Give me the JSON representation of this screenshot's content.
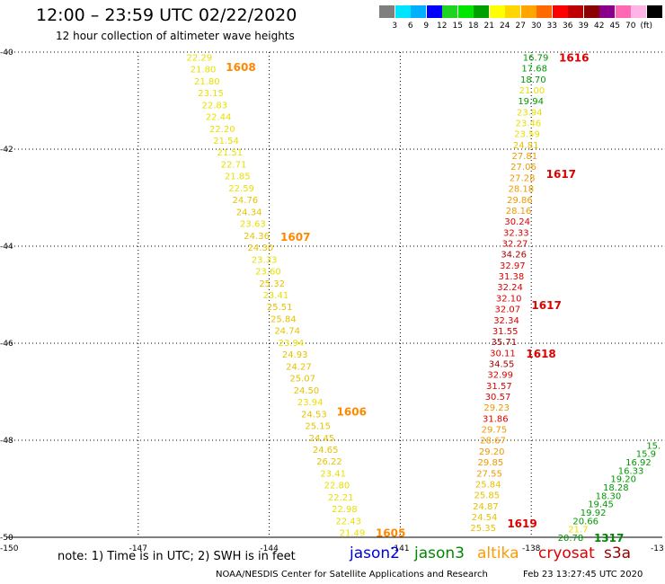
{
  "header": {
    "title": "12:00 – 23:59 UTC 02/22/2020",
    "subtitle": "12 hour collection of altimeter wave heights"
  },
  "colorbar": {
    "colors": [
      "#7f7f7f",
      "#00e5ff",
      "#00b0ff",
      "#0000ff",
      "#1fd41f",
      "#00e600",
      "#00a000",
      "#ffff00",
      "#ffd700",
      "#ffa500",
      "#ff6a00",
      "#ff0000",
      "#c00000",
      "#8b0000",
      "#8b008b",
      "#ff69b4",
      "#ffb3e6",
      "#000000"
    ],
    "labels": [
      "3",
      "6",
      "9",
      "12",
      "15",
      "18",
      "21",
      "24",
      "27",
      "30",
      "33",
      "36",
      "39",
      "42",
      "45",
      "70",
      "(ft)"
    ]
  },
  "footer": {
    "note": "note:  1) Time is in UTC;  2) SWH is in feet",
    "satellites": [
      {
        "name": "jason2",
        "color": "#0000dd"
      },
      {
        "name": "jason3",
        "color": "#008800"
      },
      {
        "name": "altika",
        "color": "#ff9900"
      },
      {
        "name": "cryosat",
        "color": "#dd0000"
      },
      {
        "name": "s3a",
        "color": "#990000"
      }
    ],
    "credit": "NOAA/NESDIS Center for Satellite Applications and Research",
    "timestamp": "Feb 23 13:27:45 UTC 2020"
  },
  "chart_data": {
    "type": "scatter",
    "title": "12:00 – 23:59 UTC 02/22/2020",
    "subtitle": "12 hour collection of altimeter wave heights",
    "xlabel": "",
    "ylabel": "",
    "xlim": [
      -150,
      -135
    ],
    "ylim": [
      -50,
      -40
    ],
    "x_ticks": [
      -147,
      -144,
      -141,
      -138
    ],
    "x_tick_labels": [
      "-147",
      "-144",
      "-141",
      "-138"
    ],
    "y_ticks": [
      -40,
      -42,
      -44,
      -46,
      -48,
      -50
    ],
    "y_tick_labels": [
      "-40",
      "-42",
      "-44",
      "-46",
      "-48",
      "-50"
    ],
    "corner_labels": {
      "bottom_left": "-150",
      "bottom_right": "-13"
    },
    "grid": true,
    "units": "ft",
    "tracks": [
      {
        "satellite": "altika",
        "values": [
          "22.29",
          "21.80",
          "21.80",
          "23.15",
          "22.83",
          "22.44",
          "22.20",
          "21.54",
          "21.51",
          "22.71",
          "21.85",
          "22.59",
          "24.76",
          "24.34",
          "23.63",
          "24.36",
          "24.30",
          "23.33",
          "23.60",
          "25.32",
          "23.41",
          "25.51",
          "25.84",
          "24.74",
          "23.94",
          "24.93",
          "24.27",
          "25.07",
          "24.50",
          "23.94",
          "24.53",
          "25.15",
          "24.45",
          "24.65",
          "26.22",
          "23.41",
          "22.80",
          "22.21",
          "22.98",
          "22.43",
          "21.49"
        ],
        "lon_start": -145.6,
        "lat_start": -40.1,
        "lon_end": -142.1,
        "lat_end": -49.9,
        "time_labels": [
          {
            "text": "1608",
            "lat": -40.3
          },
          {
            "text": "1607",
            "lat": -43.8
          },
          {
            "text": "1606",
            "lat": -47.4
          },
          {
            "text": "1605",
            "lat": -49.9
          }
        ]
      },
      {
        "satellite": "cryosat",
        "values": [
          "16.79",
          "17.68",
          "18.70",
          "21.00",
          "19.94",
          "23.94",
          "23.46",
          "23.59",
          "24.81",
          "27.81",
          "27.06",
          "27.28",
          "28.18",
          "29.86",
          "28.16",
          "30.24",
          "32.33",
          "32.27",
          "34.26",
          "32.97",
          "31.38",
          "32.24",
          "32.10",
          "32.07",
          "32.34",
          "31.55",
          "35.71",
          "30.11",
          "34.55",
          "32.99",
          "31.57",
          "30.57",
          "29.23",
          "31.86",
          "29.75",
          "28.67",
          "29.20",
          "29.85",
          "27.55",
          "25.84",
          "25.85",
          "24.87",
          "24.54",
          "25.35"
        ],
        "lon_start": -137.9,
        "lat_start": -40.1,
        "lon_end": -139.1,
        "lat_end": -49.8,
        "time_labels": [
          {
            "text": "1616",
            "lat": -40.1
          },
          {
            "text": "1617",
            "lat": -42.5
          },
          {
            "text": "1617",
            "lat": -45.2
          },
          {
            "text": "1618",
            "lat": -46.2
          },
          {
            "text": "1619",
            "lat": -49.7
          }
        ]
      },
      {
        "satellite": "jason3",
        "values": [
          "15.",
          "15.9",
          "16.92",
          "16.33",
          "19.20",
          "18.28",
          "18.30",
          "19.45",
          "19.92",
          "20.66",
          "21.7",
          "20.78"
        ],
        "lon_start": -135.2,
        "lat_start": -48.1,
        "lon_end": -137.1,
        "lat_end": -50.0,
        "time_labels": [
          {
            "text": "1317",
            "lat": -50.0
          }
        ]
      }
    ]
  }
}
